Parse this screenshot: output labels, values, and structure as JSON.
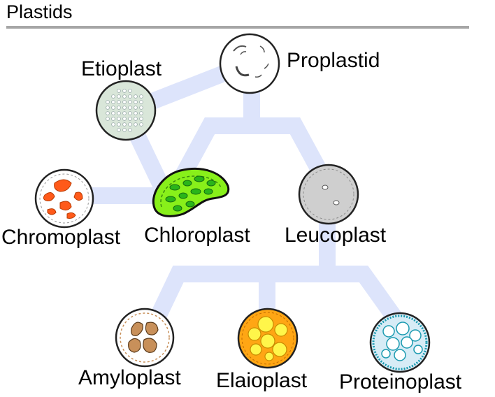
{
  "title": "Plastids",
  "labels": {
    "proplastid": "Proplastid",
    "etioplast": "Etioplast",
    "chromoplast": "Chromoplast",
    "chloroplast": "Chloroplast",
    "leucoplast": "Leucoplast",
    "amyloplast": "Amyloplast",
    "elaioplast": "Elaioplast",
    "proteinoplast": "Proteinoplast"
  },
  "colors": {
    "connector": "#dde4fb",
    "rule": "#a6a6a6",
    "proplastid": "#ffffff",
    "etioplast": "#d9e6d9",
    "chromoplast_spots": "#ff5a1a",
    "chloroplast": "#88f01a",
    "chloroplast_grana": "#2ab51a",
    "leucoplast": "#cfcfcf",
    "amyloplast_grains": "#c8905a",
    "elaioplast": "#ffa614",
    "elaioplast_droplets": "#fff64a",
    "proteinoplast": "#d7ecf6",
    "proteinoplast_edge": "#1a9ab0"
  }
}
